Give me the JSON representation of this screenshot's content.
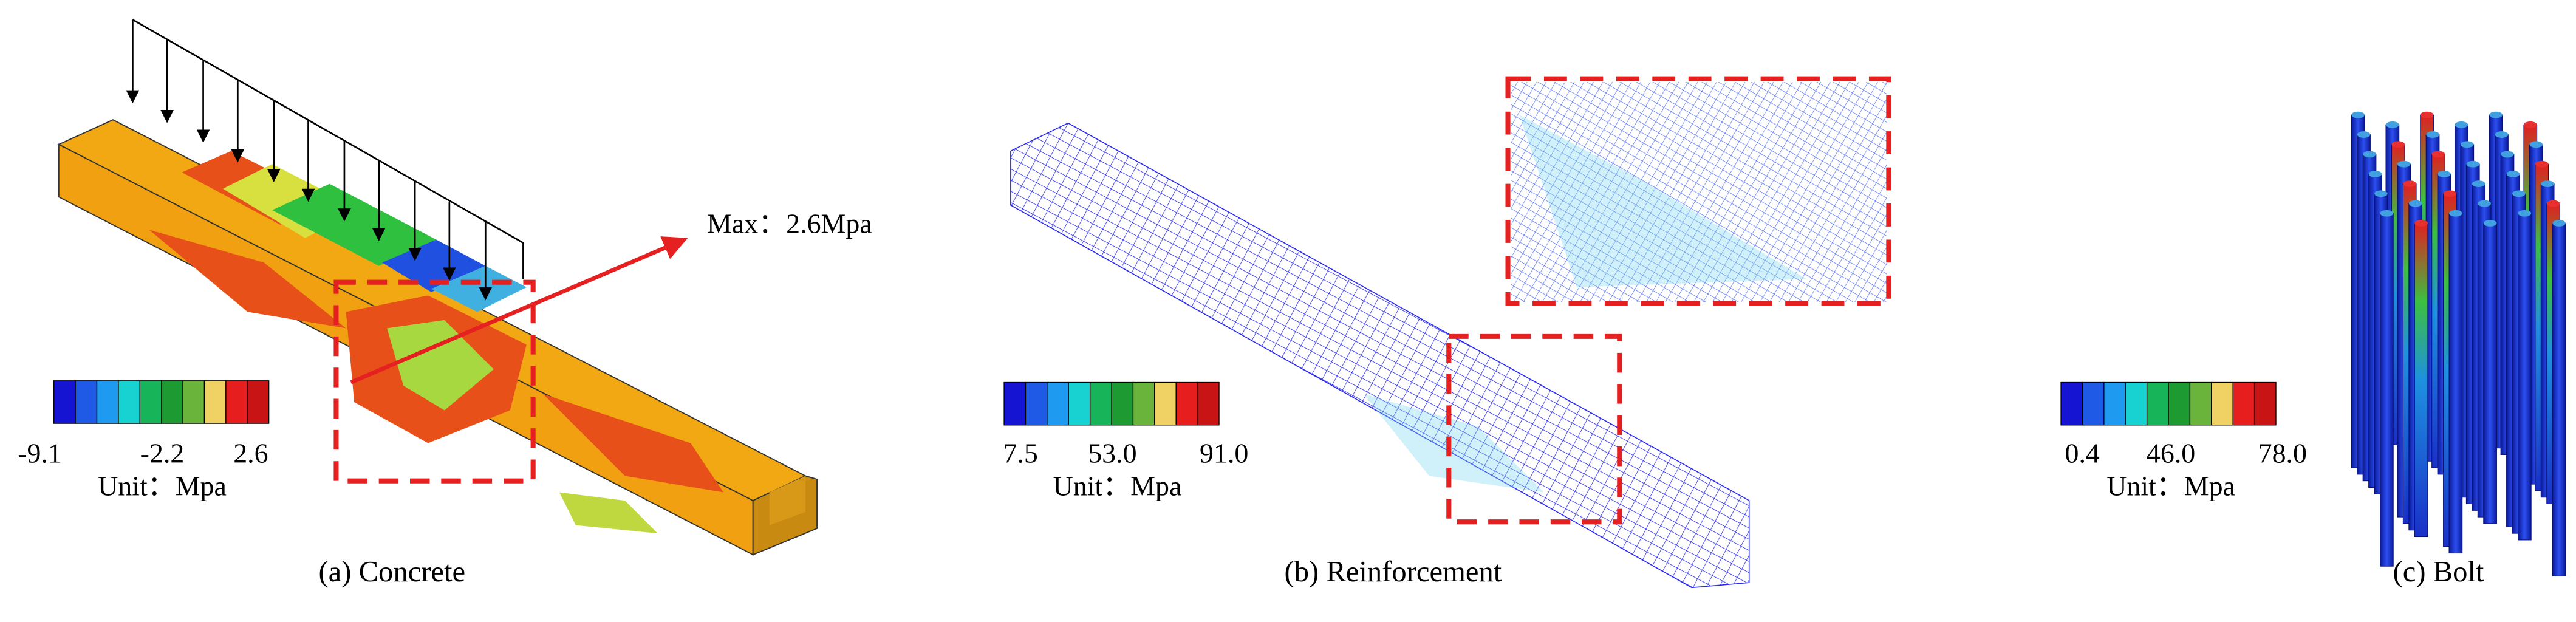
{
  "panels": [
    {
      "caption": "(a)  Concrete",
      "annotation": "Max：2.6Mpa",
      "legend": {
        "min": "-9.1",
        "mid": "-2.2",
        "max": "2.6",
        "unit": "Unit：Mpa"
      }
    },
    {
      "caption": "(b) Reinforcement",
      "legend": {
        "min": "7.5",
        "mid": "53.0",
        "max": "91.0",
        "unit": "Unit：Mpa"
      }
    },
    {
      "caption": "(c) Bolt",
      "legend": {
        "min": "0.4",
        "mid": "46.0",
        "max": "78.0",
        "unit": "Unit：Mpa"
      }
    }
  ]
}
